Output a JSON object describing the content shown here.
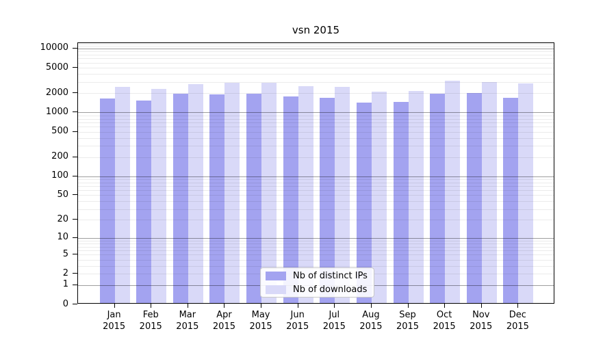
{
  "chart_data": {
    "type": "bar",
    "title": "vsn 2015",
    "categories": [
      "Jan",
      "Feb",
      "Mar",
      "Apr",
      "May",
      "Jun",
      "Jul",
      "Aug",
      "Sep",
      "Oct",
      "Nov",
      "Dec"
    ],
    "year": "2015",
    "series": [
      {
        "name": "Nb of distinct IPs",
        "color": "#a3a3f0",
        "values": [
          1580,
          1480,
          1880,
          1820,
          1870,
          1680,
          1600,
          1360,
          1390,
          1880,
          1930,
          1610
        ]
      },
      {
        "name": "Nb of downloads",
        "color": "#d9d9f8",
        "values": [
          2420,
          2250,
          2650,
          2810,
          2770,
          2460,
          2400,
          2040,
          2090,
          3020,
          2840,
          2740
        ]
      }
    ],
    "y_axis": {
      "scale": "log10(1+v)",
      "tick_values": [
        10000,
        5000,
        2000,
        1000,
        500,
        200,
        100,
        50,
        20,
        10,
        5,
        2,
        1,
        0
      ],
      "major_gridline_values": [
        1,
        10,
        100,
        1000,
        10000
      ],
      "range": [
        0,
        12000
      ]
    },
    "x_axis": {
      "label_format": "month over year"
    },
    "grid": {
      "horizontal": true,
      "minor": true
    },
    "legend": {
      "position": "inside-bottom-center"
    }
  }
}
